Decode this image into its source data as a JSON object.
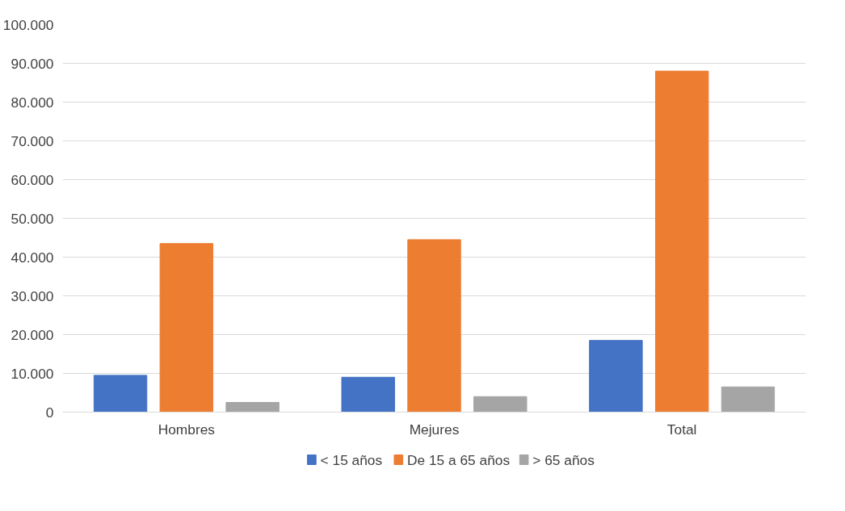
{
  "chart_data": {
    "type": "bar",
    "categories": [
      "Hombres",
      "Mejures",
      "Total"
    ],
    "series": [
      {
        "name": "< 15 años",
        "color": "#4472c4",
        "values": [
          9500,
          9000,
          18500
        ]
      },
      {
        "name": "De 15 a 65 años",
        "color": "#ed7d31",
        "values": [
          43500,
          44500,
          88000
        ]
      },
      {
        "name": "> 65 años",
        "color": "#a5a5a5",
        "values": [
          2500,
          4000,
          6500
        ]
      }
    ],
    "ylim": [
      0,
      100000
    ],
    "yticks": [
      0,
      {
        "value": 10000,
        "label": "10.000"
      },
      {
        "value": 20000,
        "label": "20.000"
      },
      {
        "value": 30000,
        "label": "30.000"
      },
      {
        "value": 40000,
        "label": "40.000"
      },
      {
        "value": 50000,
        "label": "50.000"
      },
      {
        "value": 60000,
        "label": "60.000"
      },
      {
        "value": 70000,
        "label": "70.000"
      },
      {
        "value": 80000,
        "label": "80.000"
      },
      {
        "value": 90000,
        "label": "90.000"
      },
      {
        "value": 100000,
        "label": "100.000"
      }
    ],
    "grid": "y",
    "legend": "bottom"
  }
}
